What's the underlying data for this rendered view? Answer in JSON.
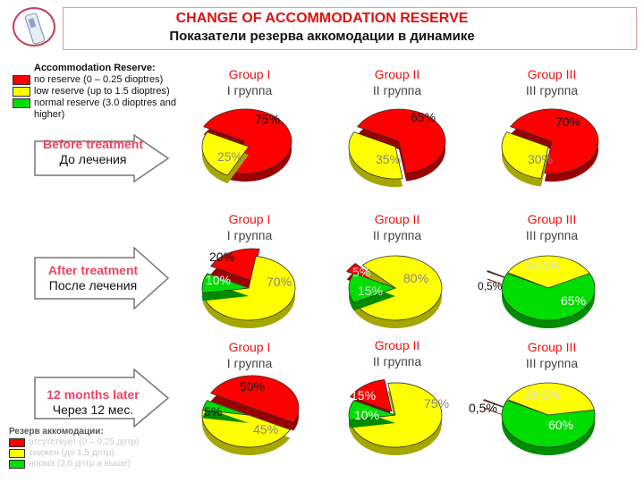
{
  "title_en": "CHANGE OF ACCOMMODATION RESERVE",
  "title_ru": "Показатели резерва аккомодации в динамике",
  "legend": {
    "heading": "Accommodation Reserve:",
    "items": [
      {
        "label": "no reserve (0 – 0.25 dioptres)",
        "color": "#ff0000"
      },
      {
        "label": "low reserve (up to 1.5 dioptres)",
        "color": "#ffff00"
      },
      {
        "label": "normal reserve (3.0 dioptres and higher)",
        "color": "#00dd00"
      }
    ]
  },
  "legend_ru": {
    "heading": "Резерв аккомодации:",
    "items": [
      {
        "label": "отсутствует (0 – 0,25 дптр)",
        "color": "#ff0000"
      },
      {
        "label": "снижен (до 1,5 дптр)",
        "color": "#ffff00"
      },
      {
        "label": "норма (3,0 дптр и выше)",
        "color": "#00dd00"
      }
    ]
  },
  "rows": [
    {
      "en": "Before treatment",
      "ru": "До лечения"
    },
    {
      "en": "After treatment",
      "ru": "После лечения"
    },
    {
      "en": "12 months later",
      "ru": "Через 12 мес."
    }
  ],
  "groups": [
    {
      "en": "Group I",
      "ru": "I группа"
    },
    {
      "en": "Group II",
      "ru": "II группа"
    },
    {
      "en": "Group III",
      "ru": "III группа"
    }
  ],
  "chart_data": {
    "type": "pie",
    "categories": [
      "no reserve",
      "low reserve",
      "normal reserve"
    ],
    "colors": [
      "#ff0000",
      "#ffff00",
      "#00dd00"
    ],
    "pies": [
      {
        "row": "Before treatment",
        "group": "Group I",
        "values": [
          75,
          25,
          0
        ],
        "labels": [
          "75%",
          "25%",
          ""
        ]
      },
      {
        "row": "Before treatment",
        "group": "Group II",
        "values": [
          65,
          35,
          0
        ],
        "labels": [
          "65%",
          "35%",
          ""
        ]
      },
      {
        "row": "Before treatment",
        "group": "Group III",
        "values": [
          70,
          30,
          0
        ],
        "labels": [
          "70%",
          "30%",
          ""
        ]
      },
      {
        "row": "After treatment",
        "group": "Group I",
        "values": [
          20,
          70,
          10
        ],
        "labels": [
          "20%",
          "70%",
          "10%"
        ]
      },
      {
        "row": "After treatment",
        "group": "Group II",
        "values": [
          5,
          80,
          15
        ],
        "labels": [
          "5%",
          "80%",
          "15%"
        ]
      },
      {
        "row": "After treatment",
        "group": "Group III",
        "values": [
          0.5,
          34.5,
          65
        ],
        "labels": [
          "0,5%",
          "34,5%",
          "65%"
        ]
      },
      {
        "row": "12 months later",
        "group": "Group I",
        "values": [
          50,
          45,
          5
        ],
        "labels": [
          "50%",
          "45%",
          "5%"
        ]
      },
      {
        "row": "12 months later",
        "group": "Group II",
        "values": [
          15,
          75,
          10
        ],
        "labels": [
          "15%",
          "75%",
          "10%"
        ]
      },
      {
        "row": "12 months later",
        "group": "Group III",
        "values": [
          0.5,
          39.5,
          60
        ],
        "labels": [
          "0,5%",
          "39,5%",
          "60%"
        ]
      }
    ]
  }
}
